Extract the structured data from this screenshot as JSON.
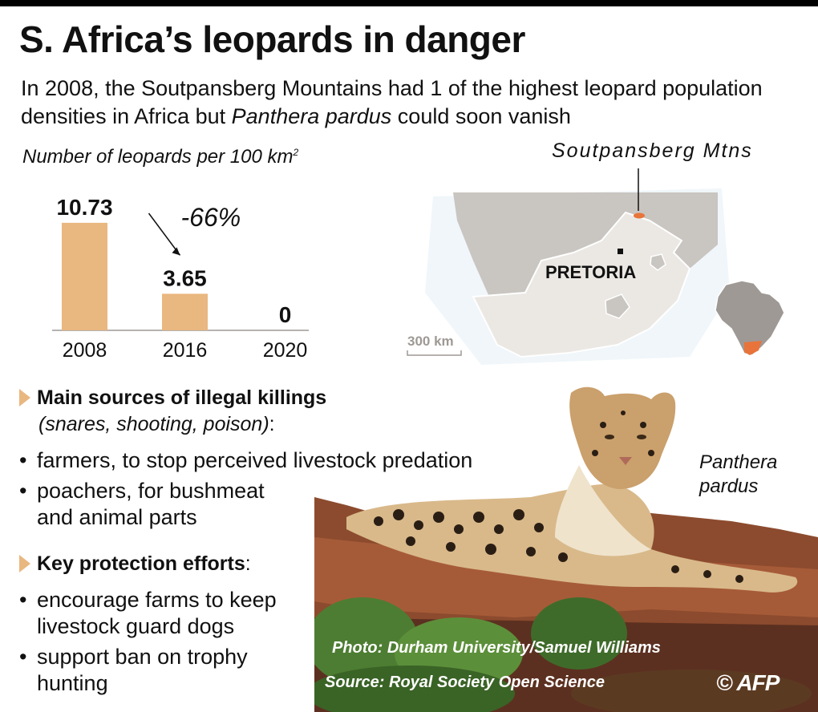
{
  "title": "S. Africa’s leopards in danger",
  "subtitle": {
    "part1": "In 2008, the Soutpansberg Mountains had 1 of the highest leopard population densities in Africa but ",
    "species_italic": "Panthera pardus",
    "part2": " could soon vanish"
  },
  "chart_unit": {
    "text": "Number of leopards per 100 km",
    "sup": "2"
  },
  "chart_data": {
    "type": "bar",
    "categories": [
      "2008",
      "2016",
      "2020"
    ],
    "values": [
      10.73,
      3.65,
      0
    ],
    "value_labels": [
      "10.73",
      "3.65",
      "0"
    ],
    "ylabel": "Number of leopards per 100 km2",
    "ylim": [
      0,
      12
    ],
    "annotation": "-66%",
    "bar_color": "#e9b780",
    "grid": false
  },
  "map": {
    "feature_label": "Soutpansberg Mtns",
    "city_label": "PRETORIA",
    "scale_label": "300 km",
    "land_color": "#ebe8e4",
    "neighbor_color": "#c9c5c1",
    "highlight_color": "#e8743b",
    "inset_africa_color": "#9e9995"
  },
  "sections": {
    "killings_head": "Main sources of illegal killings",
    "killings_sub": "(snares, shooting, poison)",
    "killings_colon": ":",
    "killings_items": [
      "farmers, to stop perceived livestock predation",
      "poachers, for bushmeat",
      "and animal parts"
    ],
    "protection_head": "Key protection efforts",
    "protection_colon": ":",
    "protection_items": [
      "encourage farms to keep",
      "livestock guard dogs",
      "support ban on trophy",
      "hunting"
    ]
  },
  "photo": {
    "species_line1": "Panthera",
    "species_line2": "pardus",
    "credit": "Photo: Durham University/Samuel Williams",
    "source": "Source: Royal Society Open Science"
  },
  "logo": "© AFP"
}
